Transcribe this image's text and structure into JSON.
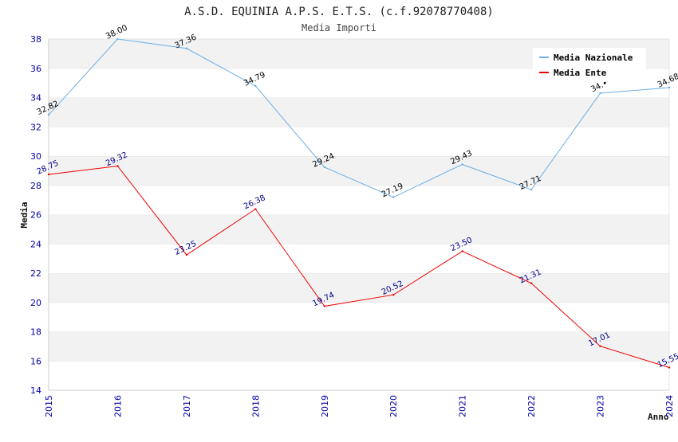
{
  "chart_data": {
    "type": "line",
    "title": "A.S.D. EQUINIA A.P.S. E.T.S. (c.f.92078770408)",
    "subtitle": "Media Importi",
    "xlabel": "Anno",
    "ylabel": "Media",
    "categories": [
      "2015",
      "2016",
      "2017",
      "2018",
      "2019",
      "2020",
      "2021",
      "2022",
      "2023",
      "2024"
    ],
    "ylim": [
      14,
      38
    ],
    "yticks": [
      "14",
      "16",
      "18",
      "20",
      "22",
      "24",
      "26",
      "28",
      "30",
      "32",
      "34",
      "36",
      "38"
    ],
    "grid": "horizontal alternating bands",
    "legend_position": "top-right",
    "series": [
      {
        "name": "Media Nazionale",
        "color": "#6aaee8",
        "label_color": "#000000",
        "values": [
          32.82,
          38.0,
          37.36,
          34.79,
          29.24,
          27.19,
          29.43,
          27.71,
          34.3,
          34.68
        ],
        "labels": [
          "32.82",
          "38.00",
          "37.36",
          "34.79",
          "29.24",
          "27.19",
          "29.43",
          "27.71",
          "34.•",
          "34.68"
        ]
      },
      {
        "name": "Media Ente",
        "color": "#ee0000",
        "label_color": "#00008b",
        "values": [
          28.75,
          29.32,
          23.25,
          26.38,
          19.74,
          20.52,
          23.5,
          21.31,
          17.01,
          15.55
        ],
        "labels": [
          "28.75",
          "29.32",
          "23.25",
          "26.38",
          "19.74",
          "20.52",
          "23.50",
          "21.31",
          "17.01",
          "15.55"
        ]
      }
    ]
  }
}
